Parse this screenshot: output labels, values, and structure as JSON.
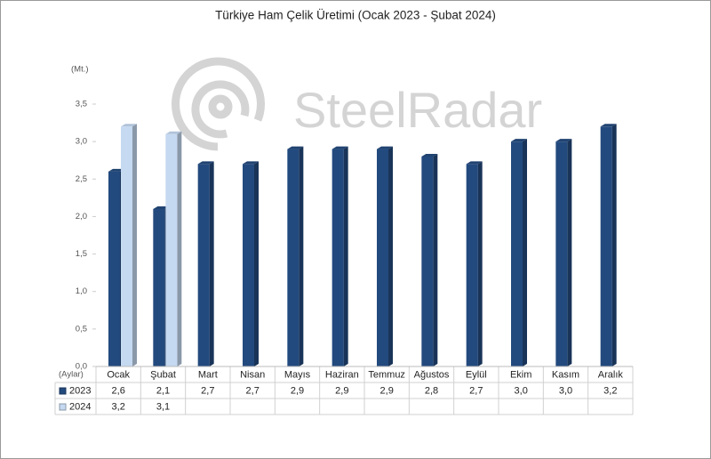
{
  "chart_data": {
    "type": "bar3d",
    "title": "Türkiye Ham Çelik Üretimi (Ocak 2023 - Şubat 2024)",
    "y_label": "(Mt.)",
    "table_header": "(Aylar)",
    "watermark": "SteelRadar",
    "categories": [
      "Ocak",
      "Şubat",
      "Mart",
      "Nisan",
      "Mayıs",
      "Haziran",
      "Temmuz",
      "Ağustos",
      "Eylül",
      "Ekim",
      "Kasım",
      "Aralık"
    ],
    "series": [
      {
        "name": "2023",
        "color": "#234a7e",
        "values": [
          2.6,
          2.1,
          2.7,
          2.7,
          2.9,
          2.9,
          2.9,
          2.8,
          2.7,
          3.0,
          3.0,
          3.2
        ],
        "value_labels": [
          "2,6",
          "2,1",
          "2,7",
          "2,7",
          "2,9",
          "2,9",
          "2,9",
          "2,8",
          "2,7",
          "3,0",
          "3,0",
          "3,2"
        ]
      },
      {
        "name": "2024",
        "color": "#c5d9f1",
        "values": [
          3.2,
          3.1,
          null,
          null,
          null,
          null,
          null,
          null,
          null,
          null,
          null,
          null
        ],
        "value_labels": [
          "3,2",
          "3,1",
          null,
          null,
          null,
          null,
          null,
          null,
          null,
          null,
          null,
          null
        ]
      }
    ],
    "ylim": [
      0,
      3.5
    ],
    "yticks": [
      {
        "value": 0,
        "label": "0,0"
      },
      {
        "value": 0.5,
        "label": "0,5"
      },
      {
        "value": 1,
        "label": "1,0"
      },
      {
        "value": 1.5,
        "label": "1,5"
      },
      {
        "value": 2,
        "label": "2,0"
      },
      {
        "value": 2.5,
        "label": "2,5"
      },
      {
        "value": 3,
        "label": "3,0"
      },
      {
        "value": 3.5,
        "label": "3,5"
      }
    ]
  }
}
